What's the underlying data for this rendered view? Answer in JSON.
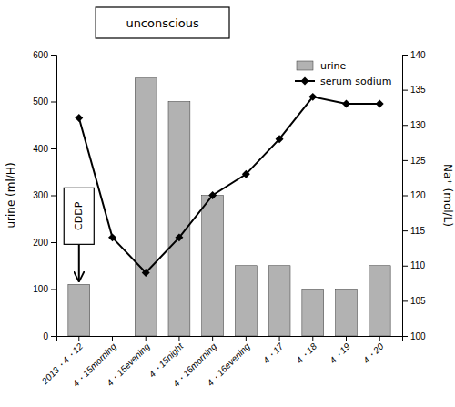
{
  "chart_data": {
    "type": "bar",
    "categories": [
      "2013・4・12",
      "4・15morning",
      "4・15evening",
      "4・15night",
      "4・16morning",
      "4・16evening",
      "4・17",
      "4・18",
      "4・19",
      "4・20"
    ],
    "series": [
      {
        "name": "urine",
        "type": "bar",
        "color": "#b2b2b2",
        "values": [
          110,
          0,
          550,
          500,
          300,
          150,
          150,
          100,
          100,
          150
        ]
      },
      {
        "name": "serum sodium",
        "type": "line",
        "axis": "y2",
        "color": "#000000",
        "marker": "diamond",
        "line_style": "solid",
        "values": [
          131,
          114,
          109,
          114,
          120,
          123,
          128,
          134,
          133,
          133
        ]
      }
    ],
    "ylabel": "urine (ml/H)",
    "y2label": "Na⁺ (mol/L)",
    "ylim": [
      0,
      600
    ],
    "yticks": [
      0,
      100,
      200,
      300,
      400,
      500,
      600
    ],
    "y2lim": [
      100,
      140
    ],
    "y2ticks": [
      100,
      105,
      110,
      115,
      120,
      125,
      130,
      135,
      140
    ],
    "annotations": [
      "CDDP",
      "unconscious"
    ],
    "legend": "upper right",
    "grid": false
  }
}
